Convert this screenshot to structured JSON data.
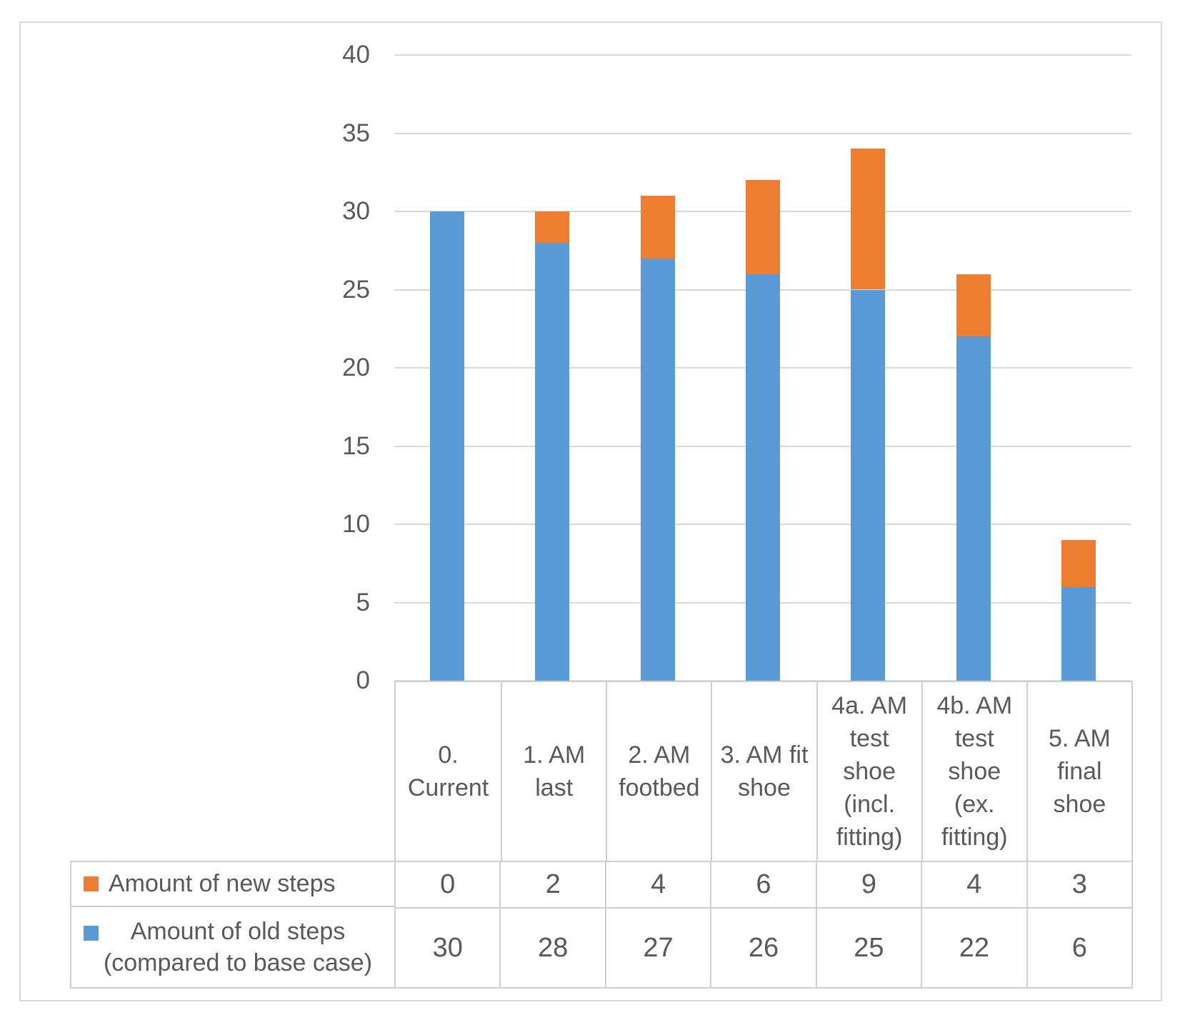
{
  "figure": {
    "background_color": "#FFFFFF",
    "frame_border_color": "#D9D9D9"
  },
  "chart_data": {
    "type": "bar",
    "stacked": true,
    "title": "",
    "xlabel": "",
    "ylabel": "",
    "categories": [
      "0. Current",
      "1. AM last",
      "2. AM footbed",
      "3. AM fit shoe",
      "4a. AM test shoe (incl. fitting)",
      "4b. AM test shoe (ex. fitting)",
      "5. AM final shoe"
    ],
    "series": [
      {
        "name": "Amount of new steps",
        "color": "#ED7D31",
        "values": [
          0,
          2,
          4,
          6,
          9,
          4,
          3
        ]
      },
      {
        "name": "Amount of old steps (compared to base case)",
        "color": "#5B9BD5",
        "values": [
          30,
          28,
          27,
          26,
          25,
          22,
          6
        ]
      }
    ],
    "stack_order_bottom_to_top": [
      "Amount of old steps (compared to base case)",
      "Amount of new steps"
    ],
    "ylim": [
      0,
      40
    ],
    "yticks": [
      0,
      5,
      10,
      15,
      20,
      25,
      30,
      35,
      40
    ],
    "grid": true,
    "gridline_color": "#D9D9D9",
    "table_border_color": "#D0D0D0",
    "text_color": "#595959",
    "legend_position": "data-table-left",
    "data_table_rows": [
      {
        "label": "Amount of new steps",
        "values": [
          0,
          2,
          4,
          6,
          9,
          4,
          3
        ]
      },
      {
        "label": "Amount of old steps (compared to base case)",
        "values": [
          30,
          28,
          27,
          26,
          25,
          22,
          6
        ]
      }
    ]
  }
}
